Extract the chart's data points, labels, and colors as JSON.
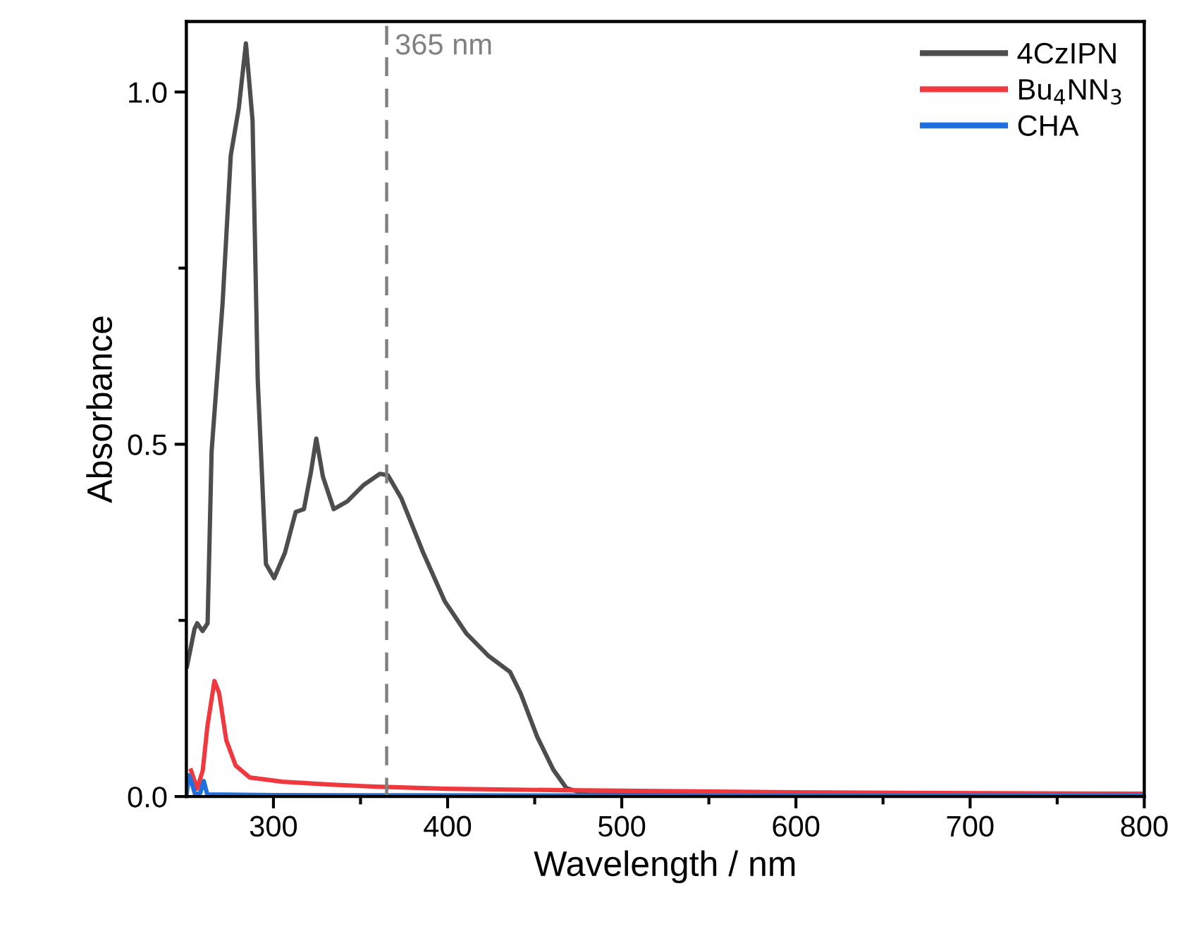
{
  "chart_data": {
    "type": "line",
    "xlabel": "Wavelength / nm",
    "ylabel": "Absorbance",
    "xlim": [
      250,
      800
    ],
    "ylim": [
      0,
      1.1
    ],
    "xticks": [
      300,
      {
        "value": 350,
        "label": null
      },
      400,
      {
        "value": 450,
        "label": null
      },
      500,
      {
        "value": 550,
        "label": null
      },
      600,
      {
        "value": 650,
        "label": null
      },
      700,
      {
        "value": 750,
        "label": null
      },
      800
    ],
    "yticks": [
      {
        "value": 0,
        "label": "0.0"
      },
      {
        "value": 0.25,
        "label": null
      },
      {
        "value": 0.5,
        "label": "0.5"
      },
      {
        "value": 0.75,
        "label": null
      },
      {
        "value": 1.0,
        "label": "1.0"
      }
    ],
    "legend": "top right",
    "grid": false,
    "line_style": "solid",
    "marker": "none",
    "ref_lines": [
      {
        "axis": "x",
        "value": 365,
        "label": "365 nm",
        "color": "#808080",
        "line_style": "dashed"
      }
    ],
    "series": [
      {
        "name": "4CzIPN",
        "color": "#4d4d4d",
        "x": [
          250.4,
          254.7,
          256.2,
          259.3,
          262.2,
          264.5,
          270.8,
          275.5,
          280.1,
          284.2,
          288,
          291,
          295.7,
          300.4,
          306.6,
          312.8,
          317.5,
          321.5,
          324.6,
          328.4,
          334.6,
          342.4,
          351.7,
          361.1,
          365.7,
          373.5,
          386,
          398.4,
          410.9,
          423.3,
          435.8,
          442,
          451.4,
          460.7,
          468.2,
          480,
          800
        ],
        "values": [
          0.185,
          0.238,
          0.246,
          0.235,
          0.246,
          0.49,
          0.7,
          0.91,
          0.977,
          1.069,
          0.96,
          0.59,
          0.33,
          0.31,
          0.346,
          0.404,
          0.408,
          0.46,
          0.508,
          0.454,
          0.408,
          0.419,
          0.442,
          0.458,
          0.456,
          0.423,
          0.346,
          0.277,
          0.231,
          0.2,
          0.177,
          0.146,
          0.085,
          0.038,
          0.012,
          0.003,
          0.001
        ]
      },
      {
        "name": "Bu$_{4}$NN$_{3}$",
        "color": "#f0393f",
        "x": [
          252.7,
          256.2,
          259.4,
          262.1,
          266.1,
          268.8,
          272.9,
          278.3,
          286.4,
          305.3,
          332.3,
          359.2,
          399.6,
          467,
          600,
          800
        ],
        "values": [
          0.037,
          0.011,
          0.037,
          0.1,
          0.164,
          0.147,
          0.08,
          0.044,
          0.027,
          0.021,
          0.017,
          0.014,
          0.011,
          0.009,
          0.006,
          0.004
        ]
      },
      {
        "name": "CHA",
        "color": "#1f6fde",
        "x": [
          250,
          251.5,
          253,
          255,
          258,
          260,
          262,
          300,
          800
        ],
        "values": [
          0.0,
          0.03,
          0.02,
          0.003,
          0.005,
          0.022,
          0.003,
          0.002,
          0.001
        ]
      }
    ]
  }
}
